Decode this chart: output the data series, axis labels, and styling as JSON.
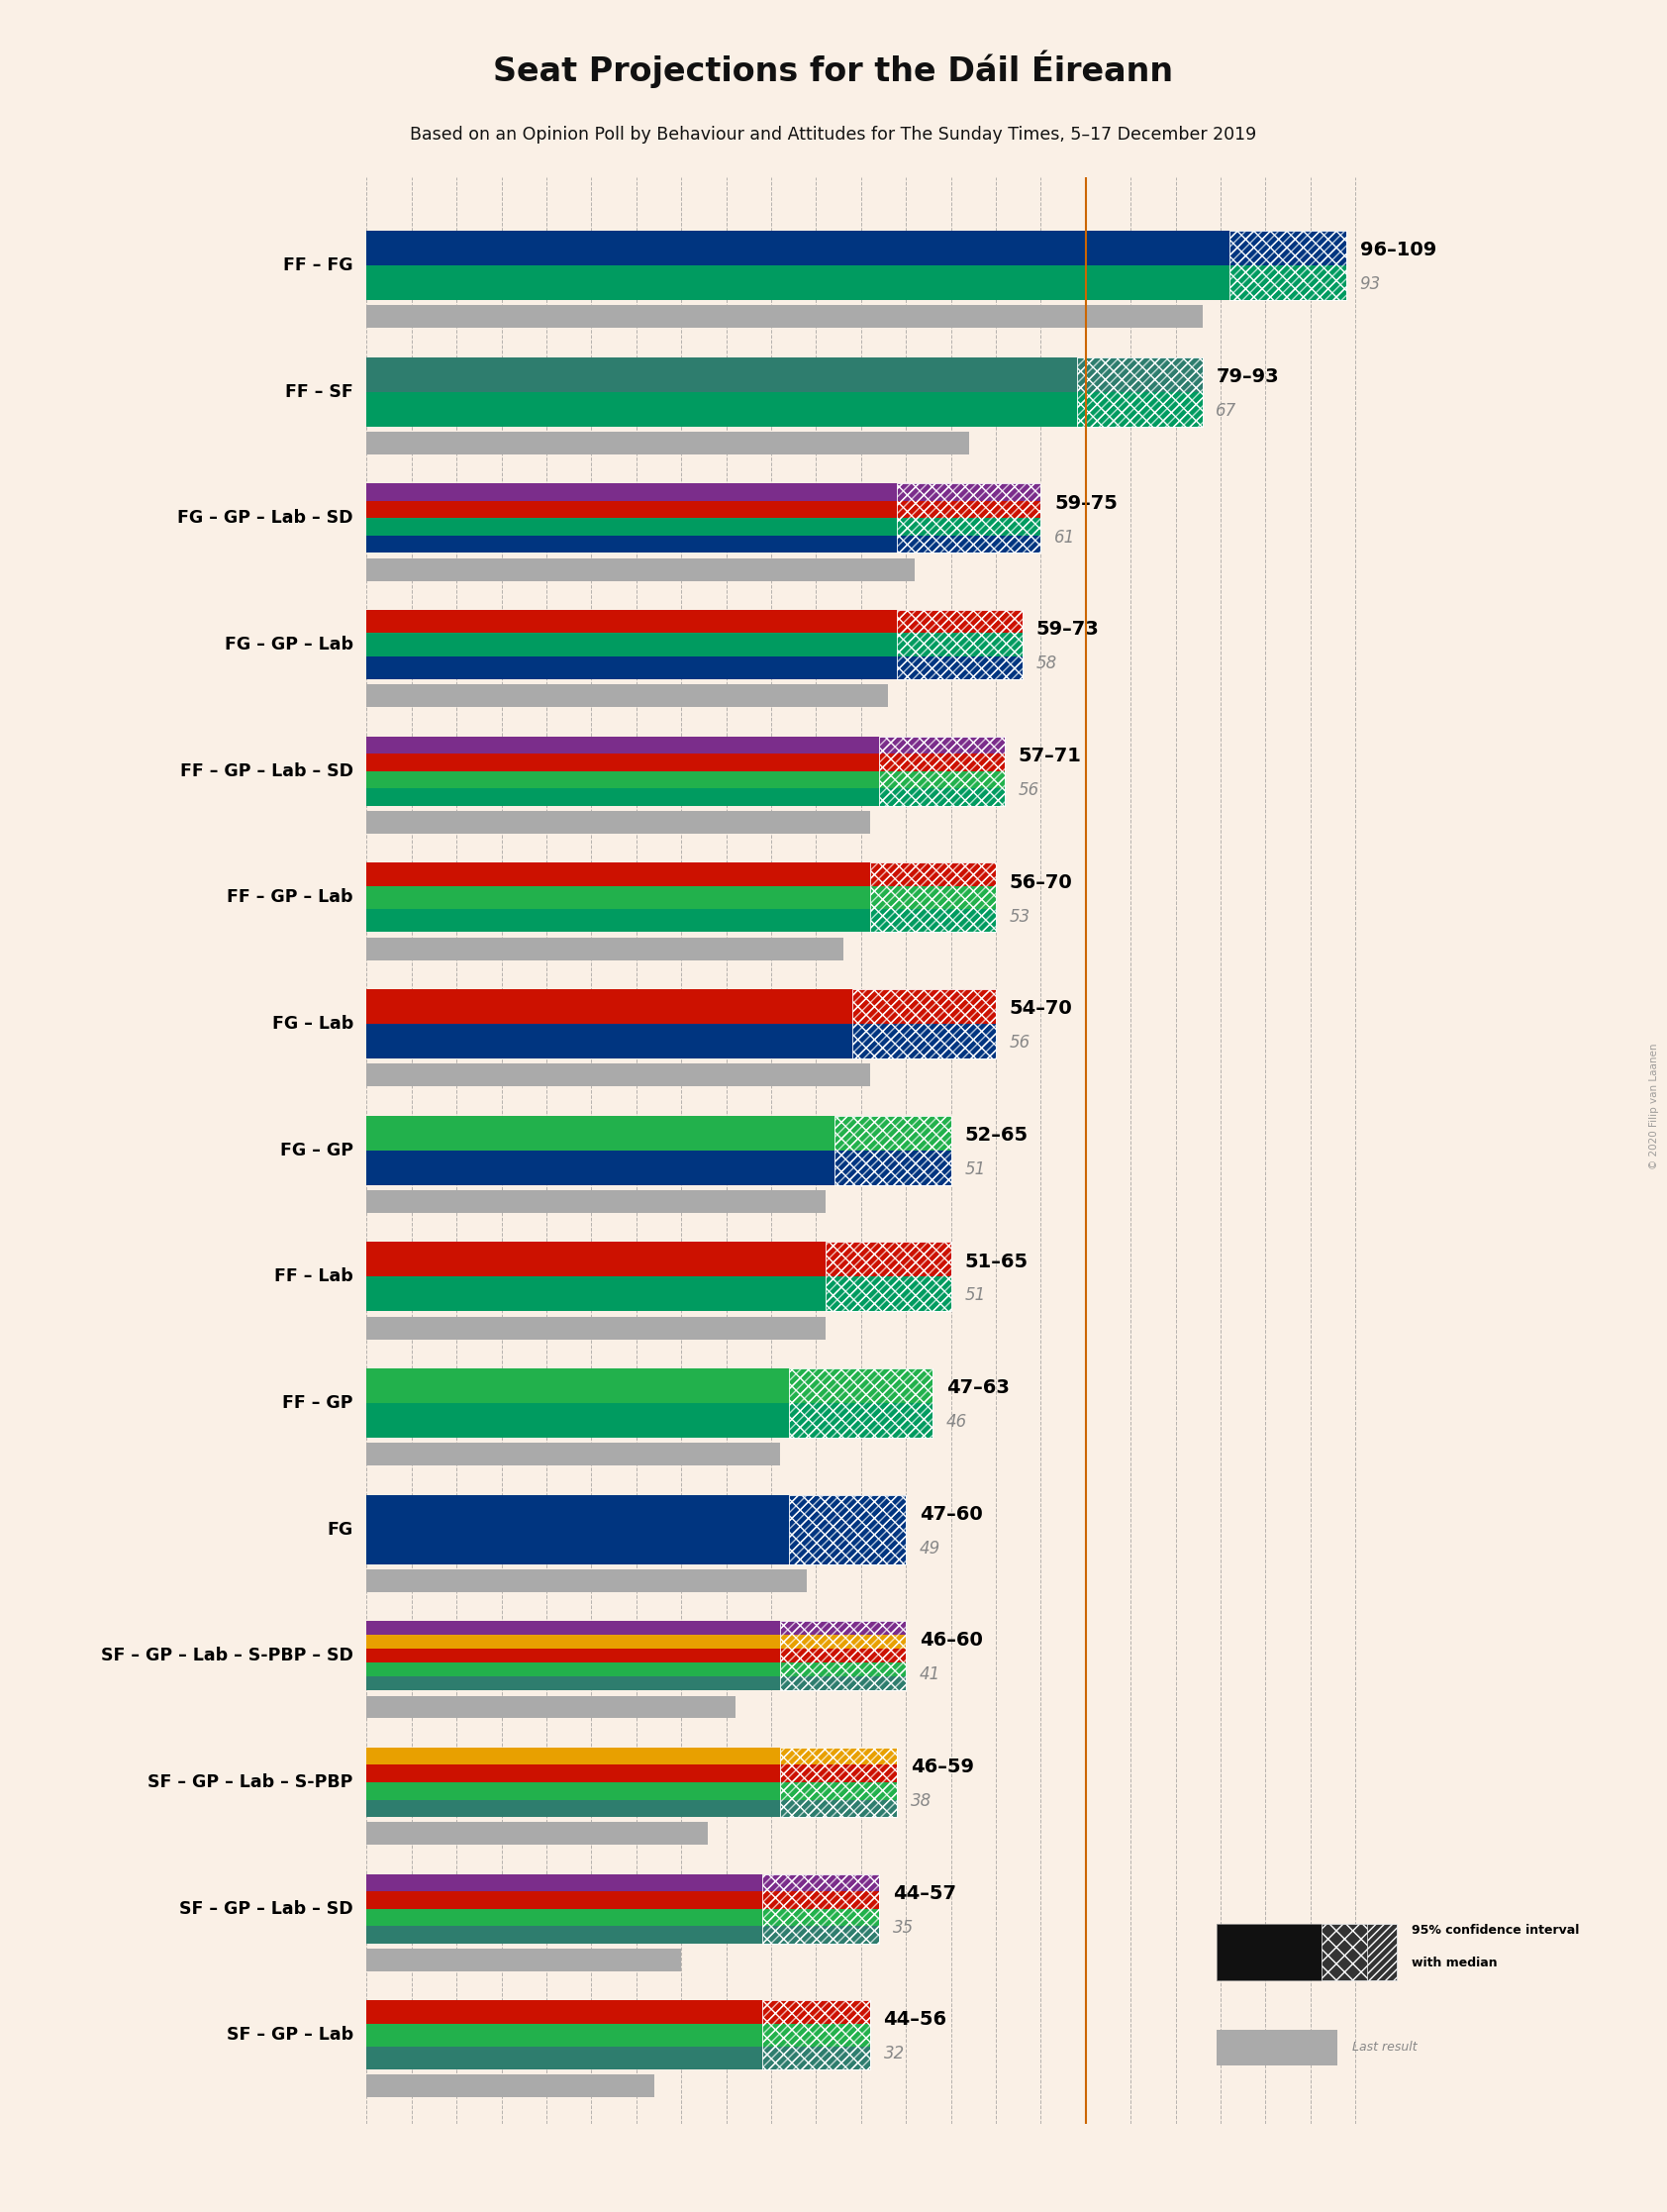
{
  "title": "Seat Projections for the Dáil Éireann",
  "subtitle": "Based on an Opinion Poll by Behaviour and Attitudes for The Sunday Times, 5–17 December 2019",
  "background_color": "#FAF0E6",
  "watermark": "© 2020 Filip van Laanen",
  "majority_line": 80,
  "x_max": 115,
  "coalitions": [
    {
      "name": "FF – FG",
      "range_low": 96,
      "range_high": 109,
      "last_result": 93,
      "colors": [
        "#009B60",
        "#003580"
      ],
      "ci_color": "#009B60",
      "ci_hatch_color": "#003580"
    },
    {
      "name": "FF – SF",
      "range_low": 79,
      "range_high": 93,
      "last_result": 67,
      "colors": [
        "#009B60",
        "#2E7D6E"
      ],
      "ci_color": "#009B60",
      "ci_hatch_color": "#2E7D6E"
    },
    {
      "name": "FG – GP – Lab – SD",
      "range_low": 59,
      "range_high": 75,
      "last_result": 61,
      "colors": [
        "#003580",
        "#009B60",
        "#CC1100",
        "#7B2D8B"
      ],
      "ci_color": "#003580",
      "ci_hatch_color": "#CC1100"
    },
    {
      "name": "FG – GP – Lab",
      "range_low": 59,
      "range_high": 73,
      "last_result": 58,
      "colors": [
        "#003580",
        "#009B60",
        "#CC1100"
      ],
      "ci_color": "#003580",
      "ci_hatch_color": "#CC1100"
    },
    {
      "name": "FF – GP – Lab – SD",
      "range_low": 57,
      "range_high": 71,
      "last_result": 56,
      "colors": [
        "#009B60",
        "#22B14C",
        "#CC1100",
        "#7B2D8B"
      ],
      "ci_color": "#009B60",
      "ci_hatch_color": "#CC1100"
    },
    {
      "name": "FF – GP – Lab",
      "range_low": 56,
      "range_high": 70,
      "last_result": 53,
      "colors": [
        "#009B60",
        "#22B14C",
        "#CC1100"
      ],
      "ci_color": "#009B60",
      "ci_hatch_color": "#CC1100"
    },
    {
      "name": "FG – Lab",
      "range_low": 54,
      "range_high": 70,
      "last_result": 56,
      "colors": [
        "#003580",
        "#CC1100"
      ],
      "ci_color": "#003580",
      "ci_hatch_color": "#CC1100"
    },
    {
      "name": "FG – GP",
      "range_low": 52,
      "range_high": 65,
      "last_result": 51,
      "colors": [
        "#003580",
        "#22B14C"
      ],
      "ci_color": "#003580",
      "ci_hatch_color": "#22B14C"
    },
    {
      "name": "FF – Lab",
      "range_low": 51,
      "range_high": 65,
      "last_result": 51,
      "colors": [
        "#009B60",
        "#CC1100"
      ],
      "ci_color": "#009B60",
      "ci_hatch_color": "#CC1100"
    },
    {
      "name": "FF – GP",
      "range_low": 47,
      "range_high": 63,
      "last_result": 46,
      "colors": [
        "#009B60",
        "#22B14C"
      ],
      "ci_color": "#009B60",
      "ci_hatch_color": "#22B14C"
    },
    {
      "name": "FG",
      "range_low": 47,
      "range_high": 60,
      "last_result": 49,
      "colors": [
        "#003580"
      ],
      "ci_color": "#003580",
      "ci_hatch_color": "#003580"
    },
    {
      "name": "SF – GP – Lab – S-PBP – SD",
      "range_low": 46,
      "range_high": 60,
      "last_result": 41,
      "colors": [
        "#2E7D6E",
        "#22B14C",
        "#CC1100",
        "#E8A000",
        "#7B2D8B"
      ],
      "ci_color": "#2E7D6E",
      "ci_hatch_color": "#CC1100"
    },
    {
      "name": "SF – GP – Lab – S-PBP",
      "range_low": 46,
      "range_high": 59,
      "last_result": 38,
      "colors": [
        "#2E7D6E",
        "#22B14C",
        "#CC1100",
        "#E8A000"
      ],
      "ci_color": "#2E7D6E",
      "ci_hatch_color": "#CC1100"
    },
    {
      "name": "SF – GP – Lab – SD",
      "range_low": 44,
      "range_high": 57,
      "last_result": 35,
      "colors": [
        "#2E7D6E",
        "#22B14C",
        "#CC1100",
        "#7B2D8B"
      ],
      "ci_color": "#2E7D6E",
      "ci_hatch_color": "#CC1100"
    },
    {
      "name": "SF – GP – Lab",
      "range_low": 44,
      "range_high": 56,
      "last_result": 32,
      "colors": [
        "#2E7D6E",
        "#22B14C",
        "#CC1100"
      ],
      "ci_color": "#2E7D6E",
      "ci_hatch_color": "#CC1100"
    }
  ]
}
